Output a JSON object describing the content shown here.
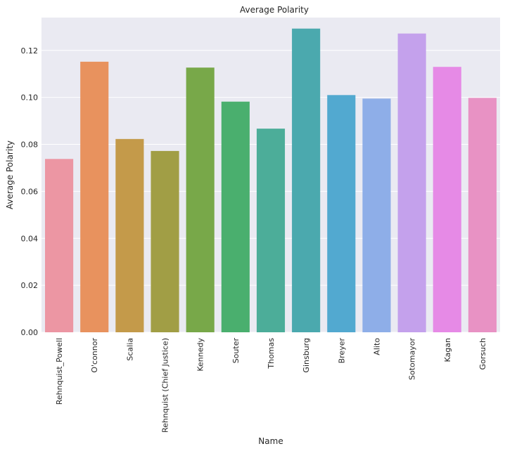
{
  "chart_data": {
    "type": "bar",
    "title": "Average Polarity",
    "xlabel": "Name",
    "ylabel": "Average Polarity",
    "ylim": [
      0,
      0.134
    ],
    "yticks": [
      "0.00",
      "0.02",
      "0.04",
      "0.06",
      "0.08",
      "0.10",
      "0.12"
    ],
    "grid": true,
    "categories": [
      "Rehnquist_Powell",
      "O'connor",
      "Scalia",
      "Rehnquist (Chief Justice)",
      "Kennedy",
      "Souter",
      "Thomas",
      "Ginsburg",
      "Breyer",
      "Alito",
      "Sotomayor",
      "Kagan",
      "Gorsuch"
    ],
    "values": [
      0.0738,
      0.1152,
      0.0823,
      0.0772,
      0.1127,
      0.0982,
      0.0867,
      0.1293,
      0.101,
      0.0995,
      0.1272,
      0.113,
      0.0998
    ],
    "colors": [
      "#ec96a3",
      "#e8925e",
      "#c49a4a",
      "#a19e45",
      "#78a849",
      "#4aaf6e",
      "#4cad99",
      "#4ba9ae",
      "#52a9d0",
      "#8eaee8",
      "#c4a1ec",
      "#e68ae6",
      "#e892c4"
    ]
  }
}
